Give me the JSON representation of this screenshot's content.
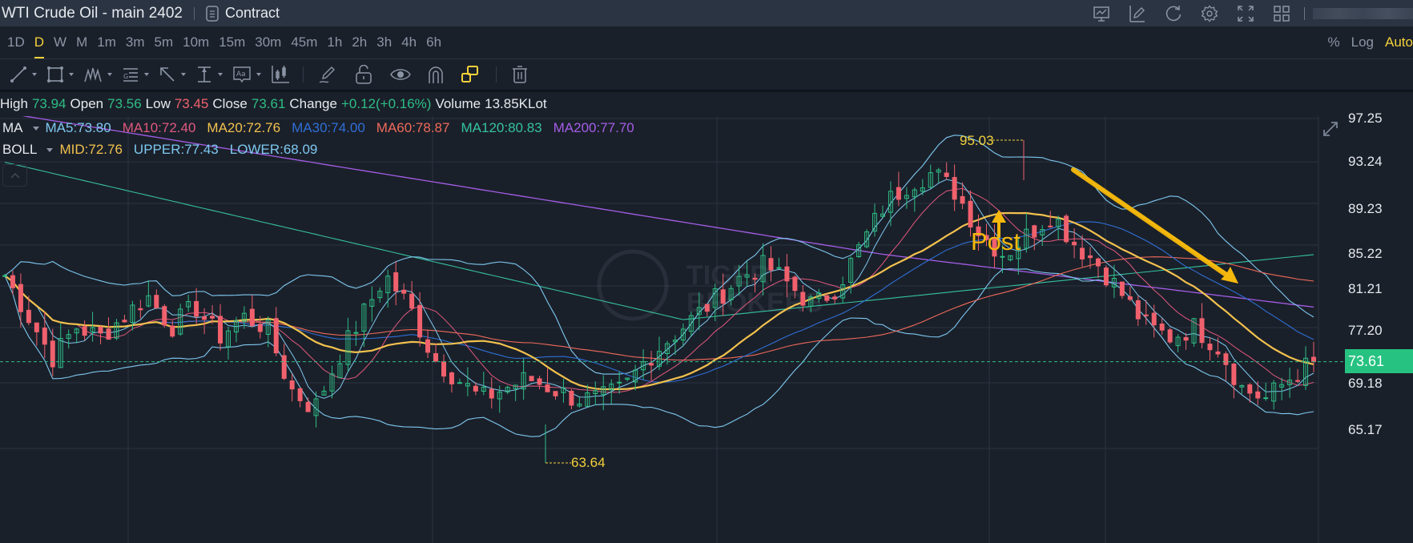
{
  "titlebar": {
    "title": "WTI Crude Oil - main 2402",
    "contract_label": "Contract",
    "icons": [
      "chart-monitor-icon",
      "edit-icon",
      "refresh-icon",
      "settings-icon",
      "fullscreen-icon",
      "grid-layout-icon"
    ]
  },
  "intervals": {
    "items": [
      "1D",
      "D",
      "W",
      "M",
      "1m",
      "3m",
      "5m",
      "10m",
      "15m",
      "30m",
      "45m",
      "1h",
      "2h",
      "3h",
      "4h",
      "6h"
    ],
    "active": "D"
  },
  "scale_options": {
    "percent": "%",
    "log": "Log",
    "auto": "Auto"
  },
  "drawing_tools": [
    "line-tool",
    "rectangle-tool",
    "pattern-tool",
    "fibonacci-tool",
    "arrow-tool",
    "measure-tool",
    "text-tool",
    "indicator-tool",
    "brush-tool",
    "lock-tool",
    "visibility-tool",
    "magnet-tool",
    "link-tool",
    "delete-tool"
  ],
  "ohlc": {
    "high_label": "High",
    "high": "73.94",
    "open_label": "Open",
    "open": "73.56",
    "low_label": "Low",
    "low": "73.45",
    "close_label": "Close",
    "close": "73.61",
    "change_label": "Change",
    "change": "+0.12(+0.16%)",
    "volume_label": "Volume",
    "volume": "13.85KLot"
  },
  "ma_legend": {
    "label": "MA",
    "ma5": "MA5:73.80",
    "ma10": "MA10:72.40",
    "ma20": "MA20:72.76",
    "ma30": "MA30:74.00",
    "ma60": "MA60:78.87",
    "ma120": "MA120:80.83",
    "ma200": "MA200:77.70"
  },
  "boll_legend": {
    "label": "BOLL",
    "mid": "MID:72.76",
    "upper": "UPPER:77.43",
    "lower": "LOWER:68.09"
  },
  "colors": {
    "up": "#2ebd85",
    "down": "#f0616d",
    "ma5": "#7ec8f0",
    "ma10": "#e0587e",
    "ma20": "#f2c14e",
    "ma30": "#2f6fd6",
    "ma60": "#ef6a5a",
    "ma120": "#35c2a0",
    "ma200": "#a45de6",
    "accent": "#f3d13a",
    "last_price_bg": "#26c281"
  },
  "y_axis": [
    "97.25",
    "93.24",
    "89.23",
    "85.22",
    "81.21",
    "77.20",
    "73.61",
    "69.18",
    "65.17"
  ],
  "last_price": "73.61",
  "annotations": {
    "high_marker": "95.03",
    "low_marker": "63.64",
    "post_text": "Post"
  },
  "watermark": {
    "line1": "TIGER",
    "line2": "BROKERS"
  },
  "chart_data": {
    "type": "candlestick",
    "title": "WTI Crude Oil - main 2402",
    "timeframe": "D",
    "ylim": [
      63.0,
      99.0
    ],
    "y_ticks": [
      97.25,
      93.24,
      89.23,
      85.22,
      81.21,
      77.2,
      73.61,
      69.18,
      65.17
    ],
    "last_price": 73.61,
    "period_high": 95.03,
    "period_low": 63.64,
    "latest_bar": {
      "open": 73.56,
      "high": 73.94,
      "low": 73.45,
      "close": 73.61,
      "change": 0.12,
      "change_pct": 0.16,
      "volume": "13.85KLot"
    },
    "indicators": {
      "MA5": 73.8,
      "MA10": 72.4,
      "MA20": 72.76,
      "MA30": 74.0,
      "MA60": 78.87,
      "MA120": 80.83,
      "MA200": 77.7,
      "BOLL_MID": 72.76,
      "BOLL_UPPER": 77.43,
      "BOLL_LOWER": 68.09
    },
    "approx_close_path": [
      82,
      78,
      74,
      77,
      76,
      78,
      80,
      77,
      79,
      76,
      78,
      77,
      71,
      69,
      74,
      78,
      82,
      79,
      74,
      72,
      70,
      71,
      72,
      71,
      70,
      70,
      71,
      74,
      76,
      78,
      80,
      82,
      83,
      81,
      79,
      81,
      85,
      89,
      91,
      92,
      90,
      86,
      84,
      86,
      88,
      85,
      83,
      80,
      77,
      76,
      77,
      75,
      71,
      70,
      72,
      73.61
    ],
    "grid": true,
    "annotations": [
      "95.03 high marker",
      "63.64 low marker",
      "Post arrow",
      "downtrend arrow"
    ]
  }
}
